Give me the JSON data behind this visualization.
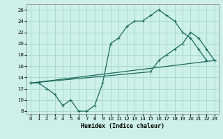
{
  "xlabel": "Humidex (Indice chaleur)",
  "bg_color": "#cdf0e8",
  "grid_color": "#a8d8cc",
  "line_color": "#1a6b5a",
  "xlim": [
    -0.5,
    23.5
  ],
  "ylim": [
    7.5,
    27
  ],
  "xticks": [
    0,
    1,
    2,
    3,
    4,
    5,
    6,
    7,
    8,
    9,
    10,
    11,
    12,
    13,
    14,
    15,
    16,
    17,
    18,
    19,
    20,
    21,
    22,
    23
  ],
  "yticks": [
    8,
    10,
    12,
    14,
    16,
    18,
    20,
    22,
    24,
    26
  ],
  "line1_x": [
    0,
    1,
    2,
    3,
    4,
    5,
    6,
    7,
    8,
    9,
    10,
    11,
    12,
    13,
    14,
    15,
    16,
    17,
    18,
    19,
    20,
    21,
    22
  ],
  "line1_y": [
    13,
    13,
    12,
    11,
    9,
    10,
    8,
    8,
    9,
    13,
    20,
    21,
    23,
    24,
    24,
    25,
    26,
    25,
    24,
    22,
    21,
    19,
    17
  ],
  "line2_x": [
    0,
    15,
    16,
    17,
    18,
    19,
    20,
    21,
    22,
    23
  ],
  "line2_y": [
    13,
    15,
    17,
    18,
    19,
    20,
    22,
    21,
    19,
    17
  ],
  "line3_x": [
    0,
    23
  ],
  "line3_y": [
    13,
    17
  ]
}
